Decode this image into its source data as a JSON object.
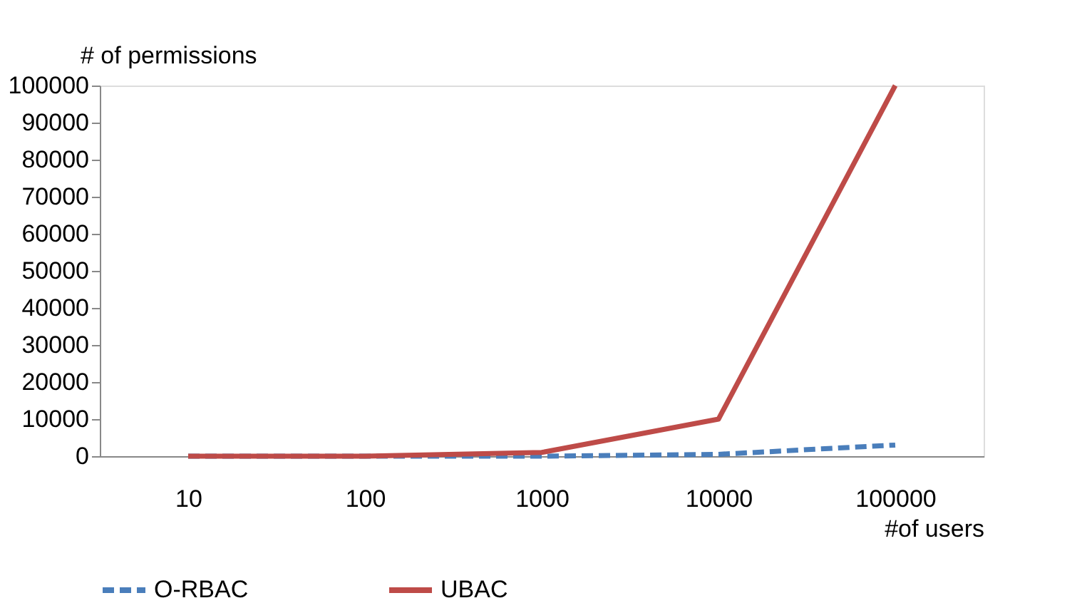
{
  "chart_data": {
    "type": "line",
    "xlabel": "#of users",
    "ylabel": "# of permissions",
    "categories": [
      "10",
      "100",
      "1000",
      "10000",
      "100000"
    ],
    "series": [
      {
        "name": "O-RBAC",
        "color": "#4a7ebb",
        "line_style": "dashed",
        "values": [
          0,
          0,
          0,
          500,
          3000
        ]
      },
      {
        "name": "UBAC",
        "color": "#be4b48",
        "line_style": "solid",
        "values": [
          0,
          0,
          1000,
          10000,
          100000
        ]
      }
    ],
    "ylim": [
      0,
      100000
    ],
    "yticks": [
      0,
      10000,
      20000,
      30000,
      40000,
      50000,
      60000,
      70000,
      80000,
      90000,
      100000
    ],
    "grid": false,
    "legend": "bottom",
    "marker": "none"
  }
}
